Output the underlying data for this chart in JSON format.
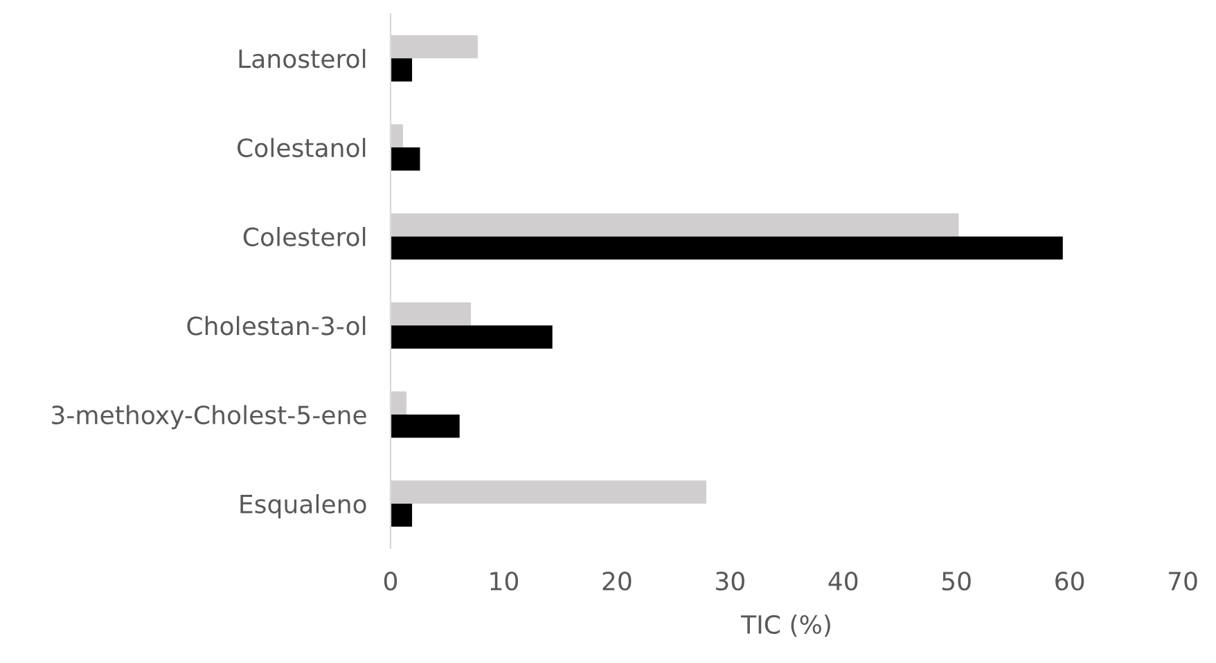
{
  "chart_data": {
    "type": "bar",
    "orientation": "horizontal",
    "xlabel": "TIC (%)",
    "categories": [
      "Lanosterol",
      "Colestanol",
      "Colesterol",
      "Cholestan-3-ol",
      "3-methoxy-Cholest-5-ene",
      "Esqualeno"
    ],
    "series": [
      {
        "color": "#d0cece",
        "values": [
          7.7,
          1.1,
          50.2,
          7.1,
          1.4,
          27.9
        ]
      },
      {
        "color": "#000000",
        "values": [
          1.9,
          2.6,
          59.4,
          14.3,
          6.1,
          1.9
        ]
      }
    ],
    "xlim": [
      0,
      70
    ],
    "xticks": [
      0,
      10,
      20,
      30,
      40,
      50,
      60,
      70
    ],
    "grid": false,
    "legend": false
  }
}
